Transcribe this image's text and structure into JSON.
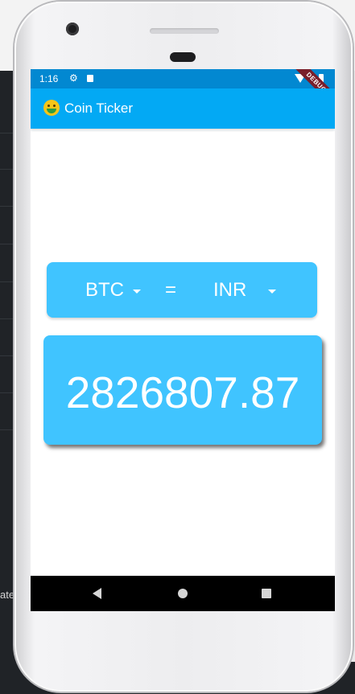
{
  "status": {
    "time": "1:16"
  },
  "debug_banner": "DEBUG",
  "appbar": {
    "title": "Coin Ticker",
    "icon": "money-mouth-face-icon"
  },
  "converter": {
    "from_currency": "BTC",
    "equals": "=",
    "to_currency": "INR"
  },
  "rate": {
    "value": "2826807.87"
  },
  "background_text": {
    "left_snippet": "ate"
  },
  "colors": {
    "status_bar": "#0288d1",
    "app_bar": "#03a9f4",
    "card": "#40c4ff",
    "debug_ribbon": "#7a1f2b"
  }
}
